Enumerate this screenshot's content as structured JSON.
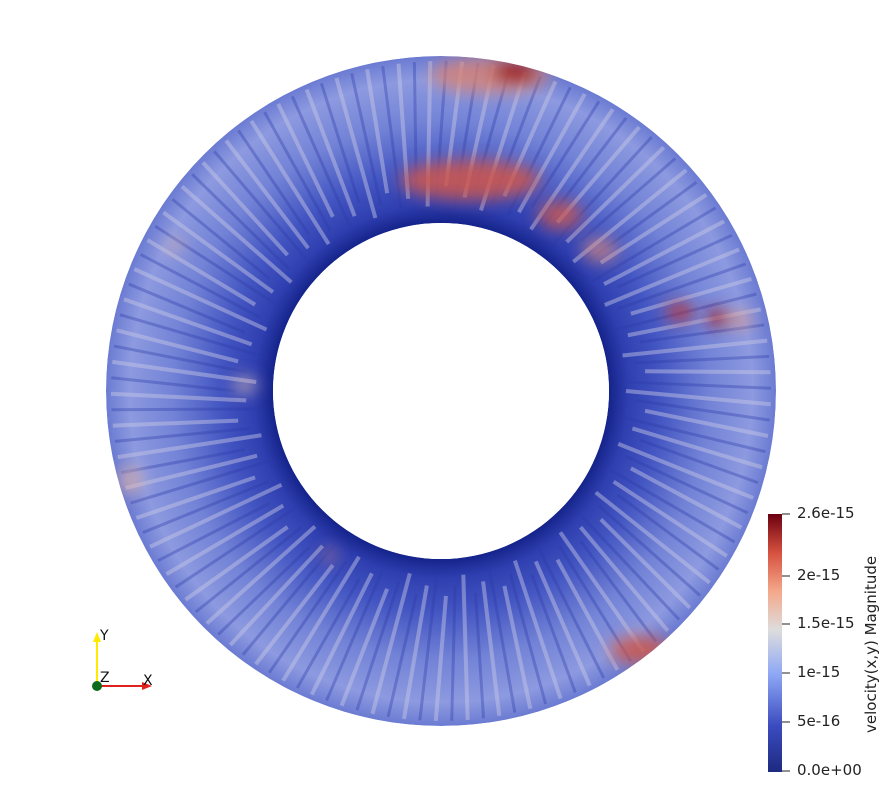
{
  "colorbar": {
    "title": "velocity(x,y) Magnitude",
    "ticks": [
      "2.6e-15",
      "2e-15",
      "1.5e-15",
      "1e-15",
      "5e-16",
      "0.0e+00"
    ],
    "colors": [
      "#3b4cc0",
      "#6f92f3",
      "#aac7fd",
      "#dddddd",
      "#f7b89c",
      "#e7745b",
      "#b40426",
      "#67000d"
    ]
  },
  "orientation_axes": {
    "x_label": "X",
    "y_label": "Y",
    "z_label": "Z",
    "x_color": "#e3211c",
    "y_color": "#ffea00",
    "z_color": "#0b6b1d"
  },
  "annulus": {
    "base_color": "#6d7fd6",
    "inner_dark": "#2a3aa6",
    "hot_color": "#c83a32"
  }
}
